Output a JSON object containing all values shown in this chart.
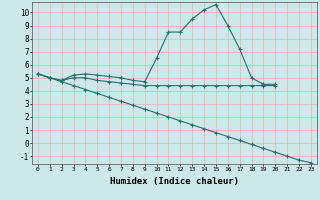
{
  "xlabel": "Humidex (Indice chaleur)",
  "bg_color": "#cce8e8",
  "grid_color": "#b0d8d8",
  "line_color": "#2a7070",
  "xlim": [
    -0.5,
    23.5
  ],
  "ylim": [
    -1.6,
    10.8
  ],
  "xticks": [
    0,
    1,
    2,
    3,
    4,
    5,
    6,
    7,
    8,
    9,
    10,
    11,
    12,
    13,
    14,
    15,
    16,
    17,
    18,
    19,
    20,
    21,
    22,
    23
  ],
  "yticks": [
    -1,
    0,
    1,
    2,
    3,
    4,
    5,
    6,
    7,
    8,
    9,
    10
  ],
  "line1_x": [
    0,
    1,
    2,
    3,
    4,
    5,
    6,
    7,
    8,
    9,
    10,
    11,
    12,
    13,
    14,
    15,
    16,
    17,
    18,
    19,
    20
  ],
  "line1_y": [
    5.3,
    5.0,
    4.8,
    5.2,
    5.3,
    5.2,
    5.1,
    5.0,
    4.8,
    4.7,
    6.5,
    8.5,
    8.5,
    9.5,
    10.2,
    10.6,
    9.0,
    7.2,
    5.0,
    4.5,
    4.5
  ],
  "line2_x": [
    0,
    1,
    2,
    3,
    4,
    5,
    6,
    7,
    8,
    9,
    10,
    11,
    12,
    13,
    14,
    15,
    16,
    17,
    18,
    19,
    20
  ],
  "line2_y": [
    5.3,
    5.0,
    4.8,
    5.0,
    5.0,
    4.8,
    4.7,
    4.6,
    4.5,
    4.4,
    4.4,
    4.4,
    4.4,
    4.4,
    4.4,
    4.4,
    4.4,
    4.4,
    4.4,
    4.4,
    4.4
  ],
  "line3_x": [
    0,
    1,
    2,
    3,
    4,
    5,
    6,
    7,
    8,
    9,
    10,
    11,
    12,
    13,
    14,
    15,
    16,
    17,
    18,
    19,
    20,
    21,
    22,
    23
  ],
  "line3_y": [
    5.3,
    5.0,
    4.7,
    4.4,
    4.1,
    3.8,
    3.5,
    3.2,
    2.9,
    2.6,
    2.3,
    2.0,
    1.7,
    1.4,
    1.1,
    0.8,
    0.5,
    0.2,
    -0.1,
    -0.4,
    -0.7,
    -1.0,
    -1.3,
    -1.5
  ]
}
